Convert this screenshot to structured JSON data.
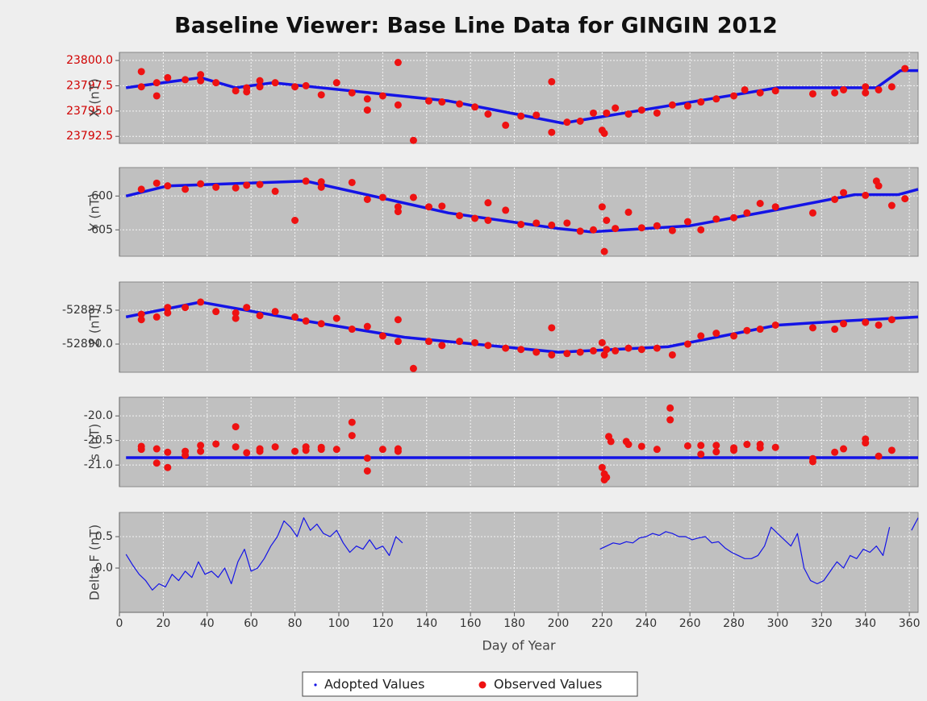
{
  "chart_data": [
    {
      "type": "scatter",
      "title": "Baseline Viewer: Base Line Data for GINGIN 2012",
      "ylabel": "X (nT)",
      "tick_label_color": "#d00000",
      "xlim": [
        0,
        364
      ],
      "ylim": [
        23791.8,
        23800.8
      ],
      "yticks": [
        {
          "value": 23792.5,
          "label": "23792.5"
        },
        {
          "value": 23795,
          "label": "23795.0"
        },
        {
          "value": 23797.5,
          "label": "23797.5"
        },
        {
          "value": 23800,
          "label": "23800.0"
        }
      ],
      "series": [
        {
          "name": "Adopted Values",
          "color": "#1414e6",
          "style": "line",
          "x": [
            3,
            37,
            53,
            70,
            150,
            202,
            300,
            345,
            356,
            364
          ],
          "values": [
            23797.3,
            23798.3,
            23797.3,
            23797.8,
            23796.0,
            23793.8,
            23797.3,
            23797.3,
            23799.0,
            23799.0
          ]
        },
        {
          "name": "Observed Values",
          "color": "#ee1111",
          "style": "points",
          "x": [
            10,
            10,
            17,
            17,
            22,
            30,
            37,
            37,
            44,
            53,
            58,
            58,
            64,
            64,
            71,
            80,
            85,
            92,
            99,
            106,
            113,
            113,
            120,
            127,
            127,
            134,
            141,
            147,
            155,
            162,
            168,
            176,
            183,
            190,
            197,
            197,
            204,
            210,
            216,
            220,
            221,
            222,
            226,
            232,
            238,
            245,
            252,
            259,
            265,
            272,
            280,
            285,
            292,
            299,
            316,
            326,
            330,
            340,
            340,
            346,
            352,
            358
          ],
          "values": [
            23798.9,
            23797.4,
            23796.5,
            23797.8,
            23798.3,
            23798.1,
            23798.6,
            23798.0,
            23797.8,
            23797.0,
            23796.9,
            23797.3,
            23798.0,
            23797.4,
            23797.8,
            23797.4,
            23797.5,
            23796.6,
            23797.8,
            23796.8,
            23796.2,
            23795.1,
            23796.5,
            23799.8,
            23795.6,
            23792.1,
            23796.0,
            23795.9,
            23795.7,
            23795.4,
            23794.7,
            23793.6,
            23794.5,
            23794.6,
            23797.9,
            23792.9,
            23793.9,
            23794.0,
            23794.8,
            23793.1,
            23792.8,
            23794.8,
            23795.3,
            23794.7,
            23795.1,
            23794.8,
            23795.6,
            23795.5,
            23795.9,
            23796.2,
            23796.5,
            23797.1,
            23796.8,
            23797.0,
            23796.7,
            23796.8,
            23797.1,
            23797.4,
            23796.8,
            23797.1,
            23797.4,
            23799.2
          ]
        }
      ]
    },
    {
      "type": "scatter",
      "ylabel": "Y (nT)",
      "tick_label_color": "#333333",
      "xlim": [
        0,
        364
      ],
      "ylim": [
        -608.9,
        -595.8
      ],
      "yticks": [
        -605,
        -600
      ],
      "series": [
        {
          "color": "#1414e6",
          "style": "line",
          "x": [
            3,
            22,
            85,
            150,
            200,
            215,
            260,
            300,
            335,
            355,
            364
          ],
          "values": [
            -600,
            -598.5,
            -597.8,
            -602.5,
            -604.8,
            -605.3,
            -604.4,
            -602,
            -599.8,
            -599.8,
            -599
          ]
        },
        {
          "color": "#ee1111",
          "style": "points",
          "x": [
            10,
            17,
            22,
            30,
            37,
            44,
            53,
            58,
            64,
            71,
            80,
            85,
            92,
            92,
            106,
            113,
            120,
            127,
            127,
            134,
            141,
            147,
            155,
            162,
            168,
            168,
            176,
            183,
            190,
            197,
            204,
            210,
            216,
            220,
            221,
            222,
            226,
            232,
            238,
            245,
            252,
            259,
            265,
            272,
            280,
            286,
            292,
            299,
            316,
            326,
            330,
            340,
            345,
            346,
            352,
            358
          ],
          "values": [
            -599,
            -598.1,
            -598.5,
            -599,
            -598.2,
            -598.7,
            -598.8,
            -598.4,
            -598.3,
            -599.3,
            -603.6,
            -597.8,
            -597.9,
            -598.7,
            -598,
            -600.5,
            -600.2,
            -601.6,
            -602.3,
            -600.2,
            -601.6,
            -601.5,
            -602.9,
            -603.3,
            -603.6,
            -601,
            -602.1,
            -604.2,
            -604,
            -604.3,
            -604,
            -605.2,
            -605,
            -601.6,
            -608.2,
            -603.6,
            -604.8,
            -602.4,
            -604.7,
            -604.4,
            -605.1,
            -603.8,
            -605,
            -603.4,
            -603.2,
            -602.5,
            -601.1,
            -601.6,
            -602.5,
            -600.5,
            -599.5,
            -599.9,
            -597.8,
            -598.5,
            -601.4,
            -600.4
          ]
        }
      ]
    },
    {
      "type": "scatter",
      "ylabel": "Z (nT)",
      "tick_label_color": "#333333",
      "xlim": [
        0,
        364
      ],
      "ylim": [
        -52892.08,
        -52885.42
      ],
      "yticks": [
        {
          "value": -52890,
          "label": "-52890.0"
        },
        -52887.5
      ],
      "series": [
        {
          "color": "#1414e6",
          "style": "line",
          "x": [
            3,
            37,
            85,
            130,
            200,
            250,
            300,
            330,
            364
          ],
          "values": [
            -52888.0,
            -52886.9,
            -52888.3,
            -52889.5,
            -52890.6,
            -52890.2,
            -52888.6,
            -52888.3,
            -52888.0
          ]
        },
        {
          "color": "#ee1111",
          "style": "points",
          "x": [
            10,
            10,
            17,
            22,
            22,
            30,
            37,
            44,
            53,
            53,
            58,
            64,
            71,
            80,
            85,
            92,
            99,
            106,
            113,
            120,
            127,
            127,
            134,
            141,
            147,
            155,
            162,
            168,
            176,
            183,
            190,
            197,
            197,
            204,
            210,
            216,
            220,
            221,
            222,
            226,
            232,
            238,
            245,
            252,
            259,
            265,
            272,
            280,
            286,
            292,
            299,
            316,
            326,
            330,
            340,
            346,
            352
          ],
          "values": [
            -52887.8,
            -52888.2,
            -52888,
            -52887.3,
            -52887.7,
            -52887.3,
            -52886.9,
            -52887.6,
            -52887.7,
            -52888.1,
            -52887.3,
            -52887.9,
            -52887.6,
            -52888,
            -52888.3,
            -52888.5,
            -52888.1,
            -52888.9,
            -52888.7,
            -52889.4,
            -52888.2,
            -52889.8,
            -52891.8,
            -52889.8,
            -52890.1,
            -52889.8,
            -52889.9,
            -52890.1,
            -52890.3,
            -52890.4,
            -52890.6,
            -52888.8,
            -52890.8,
            -52890.7,
            -52890.6,
            -52890.5,
            -52889.9,
            -52890.8,
            -52890.4,
            -52890.5,
            -52890.3,
            -52890.4,
            -52890.3,
            -52890.8,
            -52890,
            -52889.4,
            -52889.2,
            -52889.4,
            -52889,
            -52888.9,
            -52888.6,
            -52888.8,
            -52888.9,
            -52888.5,
            -52888.4,
            -52888.6,
            -52888.2
          ]
        }
      ]
    },
    {
      "type": "scatter",
      "ylabel": "s (nT)",
      "tick_label_color": "#333333",
      "xlim": [
        0,
        364
      ],
      "ylim": [
        -21.44,
        -19.62
      ],
      "yticks": [
        {
          "value": -21,
          "label": "-21.0"
        },
        -20.5,
        {
          "value": -20,
          "label": "-20.0"
        }
      ],
      "series": [
        {
          "color": "#1414e6",
          "style": "line",
          "x": [
            3,
            364
          ],
          "values": [
            -20.85,
            -20.85
          ]
        },
        {
          "color": "#ee1111",
          "style": "points",
          "x": [
            10,
            10,
            17,
            17,
            22,
            22,
            30,
            30,
            37,
            37,
            44,
            53,
            53,
            58,
            64,
            64,
            71,
            80,
            85,
            85,
            92,
            92,
            99,
            106,
            106,
            113,
            113,
            120,
            127,
            127,
            220,
            221,
            221,
            222,
            223,
            224,
            231,
            232,
            238,
            245,
            251,
            251,
            259,
            265,
            265,
            272,
            272,
            280,
            280,
            286,
            292,
            292,
            299,
            316,
            316,
            326,
            330,
            340,
            340,
            346,
            352
          ],
          "values": [
            -20.62,
            -20.68,
            -20.96,
            -20.67,
            -20.74,
            -21.05,
            -20.8,
            -20.72,
            -20.6,
            -20.72,
            -20.57,
            -20.22,
            -20.63,
            -20.75,
            -20.67,
            -20.72,
            -20.63,
            -20.72,
            -20.63,
            -20.7,
            -20.64,
            -20.68,
            -20.68,
            -20.13,
            -20.4,
            -20.86,
            -21.12,
            -20.68,
            -20.67,
            -20.72,
            -21.05,
            -21.3,
            -21.18,
            -21.25,
            -20.42,
            -20.52,
            -20.52,
            -20.58,
            -20.62,
            -20.68,
            -19.84,
            -20.08,
            -20.61,
            -20.6,
            -20.78,
            -20.6,
            -20.73,
            -20.65,
            -20.7,
            -20.58,
            -20.58,
            -20.65,
            -20.64,
            -20.87,
            -20.93,
            -20.74,
            -20.67,
            -20.47,
            -20.55,
            -20.82,
            -20.7
          ]
        }
      ]
    },
    {
      "type": "line",
      "ylabel": "Delta F (nT)",
      "xlabel": "Day of Year",
      "tick_label_color": "#333333",
      "xlim": [
        0,
        364
      ],
      "ylim": [
        -0.705,
        0.885
      ],
      "yticks": [
        {
          "value": 0,
          "label": "0.0"
        },
        0.5
      ],
      "xticks": [
        0,
        20,
        40,
        60,
        80,
        100,
        120,
        140,
        160,
        180,
        200,
        220,
        240,
        260,
        280,
        300,
        320,
        340,
        360
      ],
      "series": [
        {
          "color": "#1414e6",
          "style": "thin",
          "x": [
            3,
            6,
            9,
            12,
            15,
            18,
            21,
            24,
            27,
            30,
            33,
            36,
            39,
            42,
            45,
            48,
            51,
            54,
            57,
            60,
            63,
            66,
            69,
            72,
            75,
            78,
            81,
            84,
            87,
            90,
            93,
            96,
            99,
            102,
            105,
            108,
            111,
            114,
            117,
            120,
            123,
            126,
            129,
            175,
            219,
            222,
            225,
            228,
            231,
            234,
            237,
            240,
            243,
            246,
            249,
            252,
            255,
            258,
            261,
            264,
            267,
            270,
            273,
            276,
            279,
            282,
            285,
            288,
            291,
            294,
            297,
            300,
            303,
            306,
            309,
            312,
            315,
            318,
            321,
            324,
            327,
            330,
            333,
            336,
            339,
            342,
            345,
            348,
            351,
            356,
            361,
            364
          ],
          "values": [
            0.22,
            0.05,
            -0.1,
            -0.2,
            -0.35,
            -0.25,
            -0.3,
            -0.1,
            -0.2,
            -0.05,
            -0.15,
            0.1,
            -0.1,
            -0.05,
            -0.15,
            0.0,
            -0.25,
            0.1,
            0.3,
            -0.05,
            0.0,
            0.15,
            0.35,
            0.5,
            0.75,
            0.65,
            0.5,
            0.8,
            0.6,
            0.7,
            0.55,
            0.5,
            0.6,
            0.4,
            0.25,
            0.35,
            0.3,
            0.45,
            0.3,
            0.35,
            0.2,
            0.5,
            0.4,
            null,
            0.3,
            0.35,
            0.4,
            0.38,
            0.42,
            0.4,
            0.48,
            0.5,
            0.55,
            0.52,
            0.58,
            0.55,
            0.5,
            0.5,
            0.45,
            0.48,
            0.5,
            0.4,
            0.42,
            0.32,
            0.25,
            0.2,
            0.15,
            0.15,
            0.2,
            0.35,
            0.65,
            0.55,
            0.45,
            0.35,
            0.55,
            0.0,
            -0.2,
            -0.25,
            -0.2,
            -0.05,
            0.1,
            0.0,
            0.2,
            0.15,
            0.3,
            0.25,
            0.35,
            0.2,
            0.65,
            null,
            0.6,
            0.8
          ]
        }
      ]
    }
  ]
}
